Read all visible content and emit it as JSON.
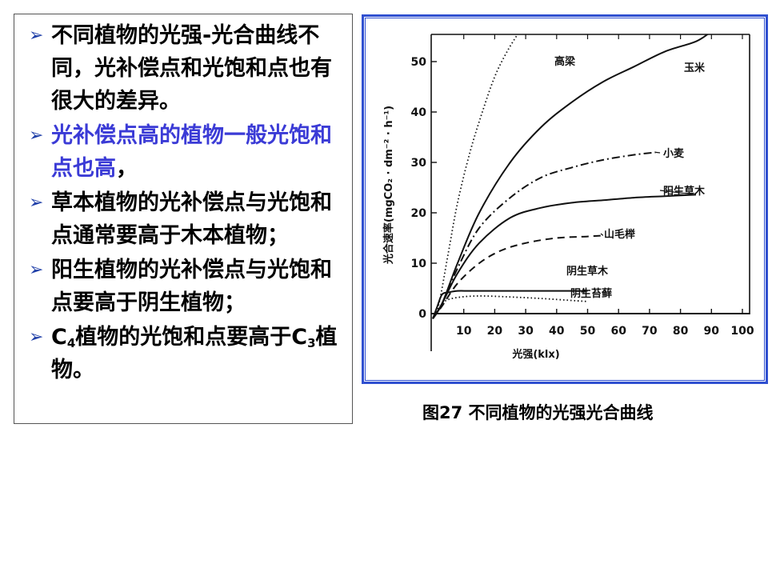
{
  "bullets": [
    {
      "text": "不同植物的光强-光合曲线不同，光补偿点和光饱和点也有很大的差异。"
    },
    {
      "text": "光补偿点高的植物一般光饱和点也高",
      "tail": "，"
    },
    {
      "text": "草本植物的光补偿点与光饱和点通常要高于木本植物；"
    },
    {
      "text": "阳生植物的光补偿点与光饱和点要高于阴生植物；"
    },
    {
      "prefix": "C",
      "sub1": "4",
      "mid": "植物的光饱和点要高于C",
      "sub2": "3",
      "suffix": "植物。"
    }
  ],
  "caption": "图27  不同植物的光强光合曲线",
  "chart_data": {
    "type": "line",
    "xlabel": "光强(klx)",
    "ylabel": "光合速率(mgCO₂ · dm⁻² · h⁻¹)",
    "xlim": [
      0,
      100
    ],
    "ylim": [
      -5,
      55
    ],
    "x_ticks": [
      10,
      20,
      30,
      40,
      50,
      60,
      70,
      80,
      90,
      100
    ],
    "y_ticks": [
      0,
      10,
      20,
      30,
      40,
      50
    ],
    "series": [
      {
        "name": "高梁",
        "style": "dotted",
        "x": [
          0,
          2,
          5,
          8,
          12,
          16,
          20,
          24,
          28
        ],
        "y": [
          -1,
          2,
          12,
          22,
          32,
          40,
          47,
          52,
          56
        ]
      },
      {
        "name": "玉米",
        "style": "solid",
        "x": [
          0,
          3,
          8,
          15,
          25,
          35,
          45,
          55,
          65,
          75,
          85,
          90
        ],
        "y": [
          -1,
          2,
          10,
          20,
          30,
          37,
          42,
          46,
          49,
          52,
          54,
          56
        ]
      },
      {
        "name": "小麦",
        "style": "dashdot",
        "x": [
          0,
          3,
          8,
          15,
          25,
          35,
          45,
          55,
          65,
          72
        ],
        "y": [
          -1,
          2,
          9,
          17,
          23,
          27,
          29,
          30.5,
          31.5,
          32
        ]
      },
      {
        "name": "阳生草木",
        "style": "solid",
        "x": [
          0,
          3,
          8,
          15,
          25,
          35,
          45,
          55,
          65,
          75,
          85
        ],
        "y": [
          -1,
          2,
          8,
          14,
          19,
          21,
          22,
          22.5,
          23,
          23.3,
          23.6
        ]
      },
      {
        "name": "山毛榉",
        "style": "dashed",
        "x": [
          0,
          3,
          8,
          15,
          22,
          30,
          40,
          50,
          55
        ],
        "y": [
          -1,
          1.5,
          6,
          10,
          12.5,
          14,
          15,
          15.3,
          15.5
        ]
      },
      {
        "name": "阴生草木",
        "style": "solid",
        "x": [
          0,
          1.5,
          3,
          5,
          8,
          12,
          20,
          30,
          40,
          50
        ],
        "y": [
          -1,
          1.5,
          3.8,
          4.2,
          4.5,
          4.5,
          4.5,
          4.5,
          4.5,
          4.5
        ]
      },
      {
        "name": "阴生苔藓",
        "style": "dotted",
        "x": [
          0,
          2,
          4,
          8,
          15,
          25,
          35,
          45,
          50
        ],
        "y": [
          -1,
          1,
          2.5,
          3.2,
          3.5,
          3.3,
          3,
          2.6,
          2.4
        ]
      }
    ],
    "grid": false,
    "legend": "inline-labels"
  }
}
